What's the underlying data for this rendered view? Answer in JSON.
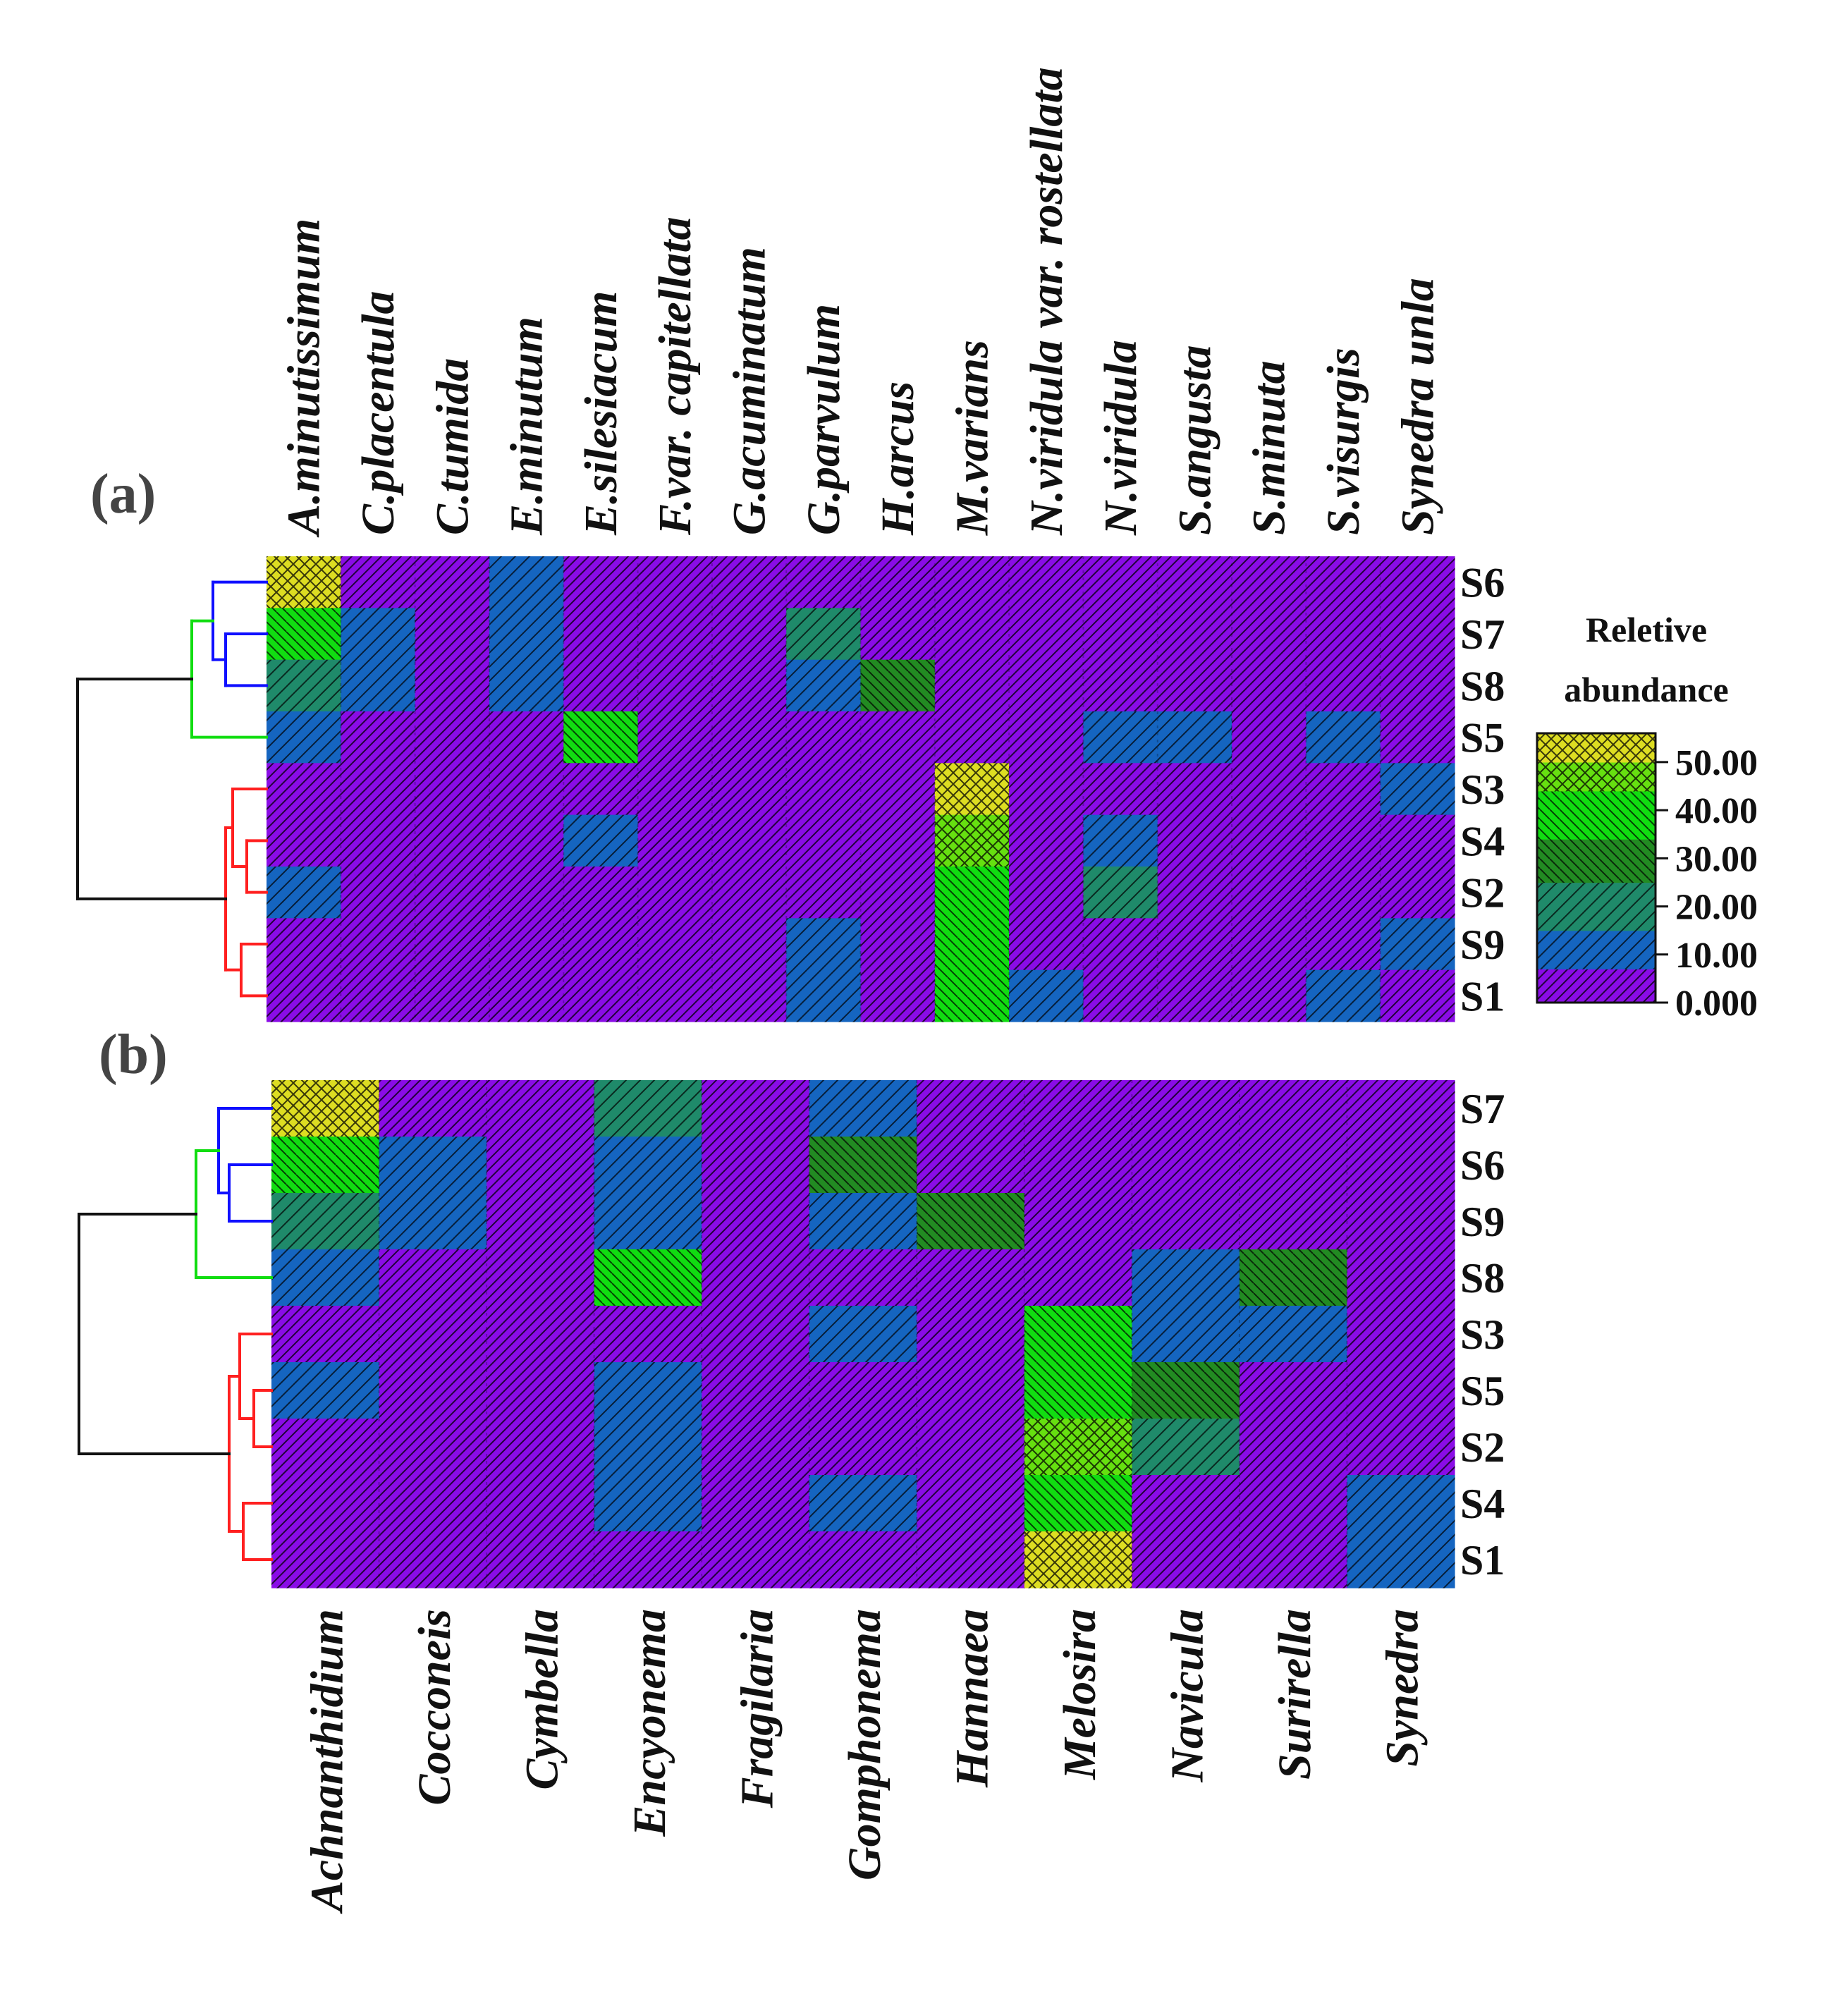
{
  "colors": {
    "scale": [
      "#8a0ce6",
      "#1565c0",
      "#1f8a6a",
      "#228b22",
      "#11dd11",
      "#66e010",
      "#dddd22"
    ],
    "dendrogram": {
      "blue": "#1010ff",
      "green": "#11dd11",
      "red": "#ff2020",
      "black": "#111111"
    }
  },
  "legend": {
    "title_line1": "Reletive",
    "title_line2": "abundance",
    "ticks": [
      "50.00",
      "40.00",
      "30.00",
      "20.00",
      "10.00",
      "0.000"
    ],
    "levels": [
      0,
      10,
      20,
      30,
      40,
      50
    ]
  },
  "chart_data": [
    {
      "type": "heatmap",
      "panel_label": "(a)",
      "columns": [
        "A.minutissimum",
        "C.placentula",
        "C.tumida",
        "E.minutum",
        "E.silesiacum",
        "F.var. capitellata",
        "G.acuminatum",
        "G.parvulum",
        "H.arcus",
        "M.varians",
        "N.viridula var. rostellata",
        "N.viridula",
        "S.angusta",
        "S.minuta",
        "S.visurgis",
        "Synedra unla"
      ],
      "rows": [
        "S6",
        "S7",
        "S8",
        "S5",
        "S3",
        "S4",
        "S2",
        "S9",
        "S1"
      ],
      "values": [
        [
          52,
          2,
          2,
          12,
          2,
          2,
          2,
          2,
          2,
          2,
          2,
          2,
          2,
          2,
          2,
          2
        ],
        [
          37,
          12,
          2,
          12,
          2,
          2,
          2,
          22,
          2,
          2,
          2,
          2,
          2,
          2,
          2,
          2
        ],
        [
          23,
          12,
          2,
          12,
          2,
          2,
          2,
          12,
          30,
          2,
          2,
          2,
          2,
          2,
          2,
          2
        ],
        [
          12,
          2,
          2,
          2,
          38,
          2,
          2,
          2,
          2,
          2,
          2,
          12,
          12,
          2,
          12,
          2
        ],
        [
          2,
          2,
          2,
          2,
          2,
          2,
          2,
          2,
          2,
          52,
          2,
          2,
          2,
          2,
          2,
          12
        ],
        [
          2,
          2,
          2,
          2,
          12,
          2,
          2,
          2,
          2,
          45,
          2,
          12,
          2,
          2,
          2,
          2
        ],
        [
          12,
          2,
          2,
          2,
          2,
          2,
          2,
          2,
          2,
          40,
          2,
          22,
          2,
          2,
          2,
          2
        ],
        [
          2,
          2,
          2,
          2,
          2,
          2,
          2,
          12,
          2,
          37,
          2,
          2,
          2,
          2,
          2,
          12
        ],
        [
          2,
          2,
          2,
          2,
          2,
          2,
          2,
          12,
          2,
          37,
          12,
          2,
          2,
          2,
          12,
          2
        ]
      ]
    },
    {
      "type": "heatmap",
      "panel_label": "(b)",
      "columns": [
        "Achnanthidium",
        "Cocconeis",
        "Cymbella",
        "Encyonema",
        "Fragilaria",
        "Gomphonema",
        "Hannaea",
        "Melosira",
        "Navicula",
        "Surirella",
        "Synedra"
      ],
      "rows": [
        "S7",
        "S6",
        "S9",
        "S8",
        "S3",
        "S5",
        "S2",
        "S4",
        "S1"
      ],
      "values": [
        [
          52,
          2,
          2,
          22,
          2,
          12,
          2,
          2,
          2,
          2,
          2
        ],
        [
          37,
          12,
          2,
          12,
          2,
          30,
          2,
          2,
          2,
          2,
          2
        ],
        [
          23,
          12,
          2,
          12,
          2,
          12,
          30,
          2,
          2,
          2,
          2
        ],
        [
          12,
          2,
          2,
          37,
          2,
          2,
          2,
          2,
          12,
          33,
          2
        ],
        [
          2,
          2,
          2,
          2,
          2,
          12,
          2,
          36,
          12,
          12,
          2
        ],
        [
          12,
          2,
          2,
          12,
          2,
          2,
          2,
          40,
          30,
          2,
          2
        ],
        [
          2,
          2,
          2,
          12,
          2,
          2,
          2,
          45,
          22,
          2,
          2
        ],
        [
          2,
          2,
          2,
          12,
          2,
          12,
          2,
          35,
          2,
          2,
          12
        ],
        [
          2,
          2,
          2,
          2,
          2,
          2,
          2,
          52,
          2,
          2,
          12
        ]
      ]
    }
  ]
}
